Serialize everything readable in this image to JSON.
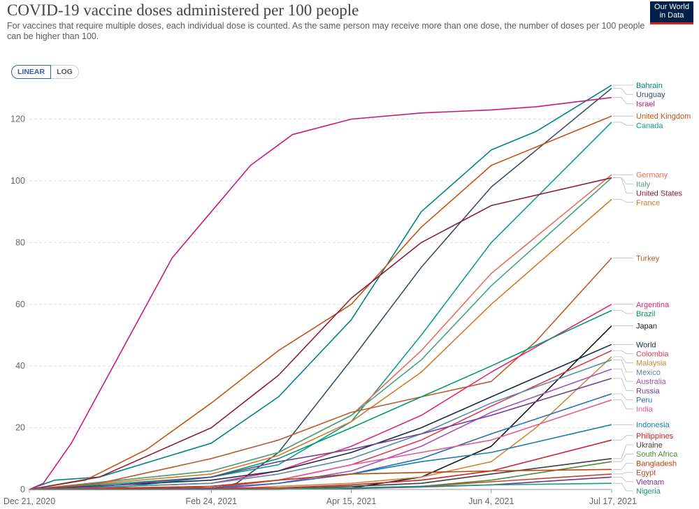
{
  "header": {
    "title": "COVID-19 vaccine doses administered per 100 people",
    "subtitle_lines": [
      "For vaccines that require multiple doses, each individual dose is counted. As the same person may receive more than one dose, the number of doses per 100 people",
      "can be higher than 100."
    ],
    "logo_lines": [
      "Our World",
      "in Data"
    ]
  },
  "scale_toggle": {
    "linear_label": "LINEAR",
    "log_label": "LOG",
    "selected": "LINEAR"
  },
  "chart_data": {
    "type": "line",
    "title": "COVID-19 vaccine doses administered per 100 people",
    "xlabel": "",
    "ylabel": "",
    "ylim": [
      0,
      131
    ],
    "y_ticks": [
      0,
      20,
      40,
      60,
      80,
      100,
      120
    ],
    "y_tick_labels": [
      "0",
      "20",
      "40",
      "60",
      "80",
      "100",
      "120"
    ],
    "x_ticks": [
      "2020-12-21",
      "2021-02-24",
      "2021-04-15",
      "2021-06-04",
      "2021-07-17"
    ],
    "x_tick_labels": [
      "Dec 21, 2020",
      "Feb 24, 2021",
      "Apr 15, 2021",
      "Jun 4, 2021",
      "Jul 17, 2021"
    ],
    "grid": true,
    "legend": "right-end labels",
    "series": [
      {
        "name": "Bahrain",
        "color": "#00847e",
        "x": [
          "2020-12-21",
          "2020-12-30",
          "2021-01-15",
          "2021-02-24",
          "2021-03-20",
          "2021-04-15",
          "2021-05-10",
          "2021-06-04",
          "2021-06-20",
          "2021-07-17"
        ],
        "y": [
          0,
          3,
          4,
          15,
          30,
          55,
          90,
          110,
          116,
          131
        ]
      },
      {
        "name": "Uruguay",
        "color": "#3c4e66",
        "x": [
          "2020-12-21",
          "2021-02-24",
          "2021-03-05",
          "2021-03-20",
          "2021-04-15",
          "2021-05-10",
          "2021-06-04",
          "2021-07-17"
        ],
        "y": [
          0,
          0,
          2,
          12,
          42,
          72,
          98,
          130
        ]
      },
      {
        "name": "Israel",
        "color": "#c71b77",
        "x": [
          "2020-12-21",
          "2020-12-26",
          "2021-01-05",
          "2021-01-20",
          "2021-02-10",
          "2021-02-24",
          "2021-03-10",
          "2021-03-25",
          "2021-04-15",
          "2021-05-10",
          "2021-06-04",
          "2021-06-20",
          "2021-07-17"
        ],
        "y": [
          0,
          2,
          15,
          40,
          75,
          90,
          105,
          115,
          120,
          122,
          123,
          124,
          127
        ]
      },
      {
        "name": "United Kingdom",
        "color": "#c15516",
        "x": [
          "2020-12-21",
          "2021-01-10",
          "2021-02-01",
          "2021-02-24",
          "2021-03-20",
          "2021-04-15",
          "2021-05-10",
          "2021-06-04",
          "2021-07-17"
        ],
        "y": [
          0,
          3,
          13,
          28,
          45,
          60,
          85,
          105,
          121
        ]
      },
      {
        "name": "Canada",
        "color": "#0b9f8e",
        "x": [
          "2020-12-21",
          "2021-02-24",
          "2021-03-20",
          "2021-04-15",
          "2021-05-10",
          "2021-06-04",
          "2021-07-17"
        ],
        "y": [
          0,
          4,
          8,
          22,
          50,
          80,
          119
        ]
      },
      {
        "name": "Germany",
        "color": "#e56e5a",
        "x": [
          "2020-12-21",
          "2021-02-24",
          "2021-03-20",
          "2021-04-15",
          "2021-05-10",
          "2021-06-04",
          "2021-07-17"
        ],
        "y": [
          0,
          6,
          12,
          24,
          45,
          70,
          102
        ]
      },
      {
        "name": "Italy",
        "color": "#49a37c",
        "x": [
          "2020-12-21",
          "2021-02-24",
          "2021-03-20",
          "2021-04-15",
          "2021-05-10",
          "2021-06-04",
          "2021-07-17"
        ],
        "y": [
          0,
          6,
          12,
          24,
          42,
          66,
          101
        ]
      },
      {
        "name": "United States",
        "color": "#8b1c3c",
        "x": [
          "2020-12-21",
          "2021-01-15",
          "2021-02-24",
          "2021-03-20",
          "2021-04-15",
          "2021-05-10",
          "2021-06-04",
          "2021-07-17"
        ],
        "y": [
          0,
          4,
          20,
          37,
          62,
          80,
          92,
          101
        ]
      },
      {
        "name": "France",
        "color": "#d17a29",
        "x": [
          "2020-12-21",
          "2021-02-24",
          "2021-03-20",
          "2021-04-15",
          "2021-05-10",
          "2021-06-04",
          "2021-07-17"
        ],
        "y": [
          0,
          5,
          11,
          22,
          38,
          60,
          94
        ]
      },
      {
        "name": "Turkey",
        "color": "#bc5b2b",
        "x": [
          "2020-12-21",
          "2021-01-15",
          "2021-02-24",
          "2021-03-20",
          "2021-04-15",
          "2021-05-10",
          "2021-06-04",
          "2021-06-20",
          "2021-07-17"
        ],
        "y": [
          0,
          2,
          10,
          16,
          25,
          30,
          35,
          48,
          75
        ]
      },
      {
        "name": "Argentina",
        "color": "#e0287a",
        "x": [
          "2020-12-21",
          "2021-02-24",
          "2021-03-20",
          "2021-04-15",
          "2021-05-10",
          "2021-06-04",
          "2021-07-17"
        ],
        "y": [
          0,
          2,
          6,
          14,
          24,
          38,
          60
        ]
      },
      {
        "name": "Brazil",
        "color": "#009a6e",
        "x": [
          "2020-12-21",
          "2021-01-20",
          "2021-02-24",
          "2021-03-20",
          "2021-04-15",
          "2021-05-10",
          "2021-06-04",
          "2021-07-17"
        ],
        "y": [
          0,
          0.5,
          4,
          10,
          20,
          30,
          40,
          58
        ]
      },
      {
        "name": "Japan",
        "color": "#161616",
        "x": [
          "2020-12-21",
          "2021-03-20",
          "2021-04-15",
          "2021-05-10",
          "2021-06-04",
          "2021-07-17"
        ],
        "y": [
          0,
          0,
          0.5,
          4,
          14,
          53
        ]
      },
      {
        "name": "World",
        "color": "#1b2a4a",
        "x": [
          "2020-12-21",
          "2021-02-24",
          "2021-03-20",
          "2021-04-15",
          "2021-05-10",
          "2021-06-04",
          "2021-07-17"
        ],
        "y": [
          0,
          3,
          6,
          12,
          20,
          30,
          47
        ]
      },
      {
        "name": "Colombia",
        "color": "#d73c50",
        "x": [
          "2020-12-21",
          "2021-02-24",
          "2021-03-20",
          "2021-04-15",
          "2021-05-10",
          "2021-06-04",
          "2021-07-17"
        ],
        "y": [
          0,
          0.5,
          3,
          8,
          16,
          27,
          45
        ]
      },
      {
        "name": "Malaysia",
        "color": "#c9893b",
        "x": [
          "2020-12-21",
          "2021-02-24",
          "2021-03-20",
          "2021-04-15",
          "2021-05-10",
          "2021-06-04",
          "2021-06-20",
          "2021-07-17"
        ],
        "y": [
          0,
          0,
          1,
          2,
          4,
          9,
          20,
          43
        ]
      },
      {
        "name": "Mexico",
        "color": "#578aa8",
        "x": [
          "2020-12-21",
          "2021-02-24",
          "2021-03-20",
          "2021-04-15",
          "2021-05-10",
          "2021-06-04",
          "2021-07-17"
        ],
        "y": [
          0,
          2,
          5,
          10,
          18,
          28,
          42
        ]
      },
      {
        "name": "Australia",
        "color": "#a652ba",
        "x": [
          "2020-12-21",
          "2021-02-24",
          "2021-03-20",
          "2021-04-15",
          "2021-05-10",
          "2021-06-04",
          "2021-07-17"
        ],
        "y": [
          0,
          0,
          2,
          6,
          14,
          25,
          39
        ]
      },
      {
        "name": "Russia",
        "color": "#6d3e91",
        "x": [
          "2020-12-21",
          "2021-01-15",
          "2021-02-24",
          "2021-03-20",
          "2021-04-15",
          "2021-05-10",
          "2021-06-04",
          "2021-07-17"
        ],
        "y": [
          0,
          1,
          4,
          9,
          13,
          18,
          24,
          36
        ]
      },
      {
        "name": "Peru",
        "color": "#286bbb",
        "x": [
          "2020-12-21",
          "2021-02-24",
          "2021-03-20",
          "2021-04-15",
          "2021-05-10",
          "2021-06-04",
          "2021-07-17"
        ],
        "y": [
          0,
          0.5,
          2,
          5,
          10,
          18,
          31
        ]
      },
      {
        "name": "India",
        "color": "#e6568f",
        "x": [
          "2020-12-21",
          "2021-01-20",
          "2021-02-24",
          "2021-03-20",
          "2021-04-15",
          "2021-05-10",
          "2021-06-04",
          "2021-07-17"
        ],
        "y": [
          0,
          0.3,
          1,
          3,
          8,
          12,
          16,
          29
        ]
      },
      {
        "name": "Indonesia",
        "color": "#1a7fa8",
        "x": [
          "2020-12-21",
          "2021-02-24",
          "2021-03-20",
          "2021-04-15",
          "2021-05-10",
          "2021-06-04",
          "2021-07-17"
        ],
        "y": [
          0,
          1,
          3,
          5,
          9,
          12,
          21
        ]
      },
      {
        "name": "Philippines",
        "color": "#c9222a",
        "x": [
          "2020-12-21",
          "2021-03-20",
          "2021-04-15",
          "2021-05-10",
          "2021-06-04",
          "2021-07-17"
        ],
        "y": [
          0,
          0.5,
          1.5,
          3,
          6,
          16
        ]
      },
      {
        "name": "Ukraine",
        "color": "#3f3f3f",
        "x": [
          "2020-12-21",
          "2021-03-20",
          "2021-04-15",
          "2021-05-10",
          "2021-06-04",
          "2021-07-17"
        ],
        "y": [
          0,
          0.2,
          1,
          2,
          5,
          10
        ]
      },
      {
        "name": "South Africa",
        "color": "#4e8c2f",
        "x": [
          "2020-12-21",
          "2021-02-24",
          "2021-04-15",
          "2021-05-10",
          "2021-06-04",
          "2021-07-17"
        ],
        "y": [
          0,
          0.1,
          0.5,
          1,
          3,
          9
        ]
      },
      {
        "name": "Bangladesh",
        "color": "#c2410c",
        "x": [
          "2020-12-21",
          "2021-02-24",
          "2021-03-20",
          "2021-04-15",
          "2021-05-10",
          "2021-06-04",
          "2021-07-17"
        ],
        "y": [
          0,
          1,
          3,
          5,
          5.5,
          6,
          6.5
        ]
      },
      {
        "name": "Egypt",
        "color": "#b7492d",
        "x": [
          "2020-12-21",
          "2021-02-24",
          "2021-04-15",
          "2021-05-10",
          "2021-06-04",
          "2021-07-17"
        ],
        "y": [
          0,
          0.1,
          0.5,
          1,
          2.5,
          5
        ]
      },
      {
        "name": "Vietnam",
        "color": "#7d2f94",
        "x": [
          "2020-12-21",
          "2021-03-20",
          "2021-04-15",
          "2021-05-10",
          "2021-06-04",
          "2021-07-17"
        ],
        "y": [
          0,
          0.1,
          0.3,
          0.8,
          1.5,
          4
        ]
      },
      {
        "name": "Nigeria",
        "color": "#15a078",
        "x": [
          "2020-12-21",
          "2021-03-10",
          "2021-04-15",
          "2021-05-10",
          "2021-06-04",
          "2021-07-17"
        ],
        "y": [
          0,
          0,
          0.5,
          1,
          1.5,
          2
        ]
      }
    ]
  }
}
